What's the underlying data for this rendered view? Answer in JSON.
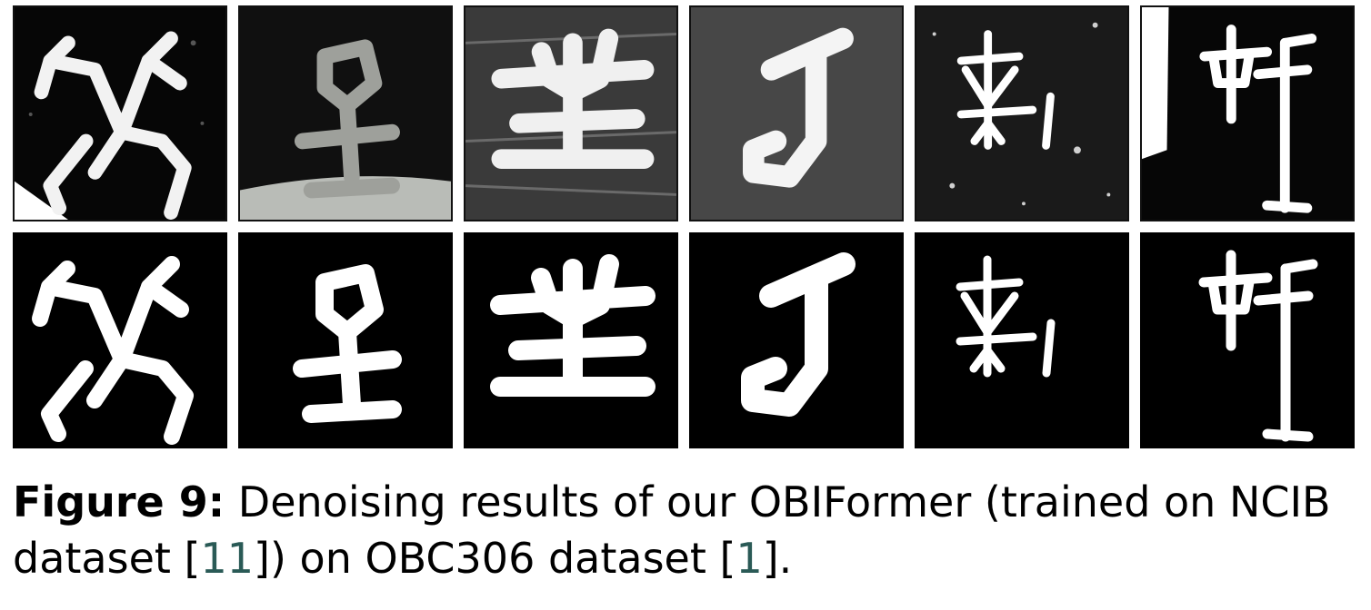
{
  "figure": {
    "caption_label": "Figure 9:",
    "caption_line1": "Denoising results of our OBIFormer (trained on NCIB",
    "caption_line2_a": "dataset [",
    "ref_a": "11",
    "caption_line2_b": "]) on OBC306 dataset [",
    "ref_b": "1",
    "caption_line2_c": "]."
  },
  "rows": [
    {
      "role": "noisy-input",
      "count": 6
    },
    {
      "role": "denoised-output",
      "count": 6
    }
  ],
  "colors": {
    "background": "#000000",
    "glyph": "#ffffff",
    "reference_link": "#2a5a56"
  }
}
